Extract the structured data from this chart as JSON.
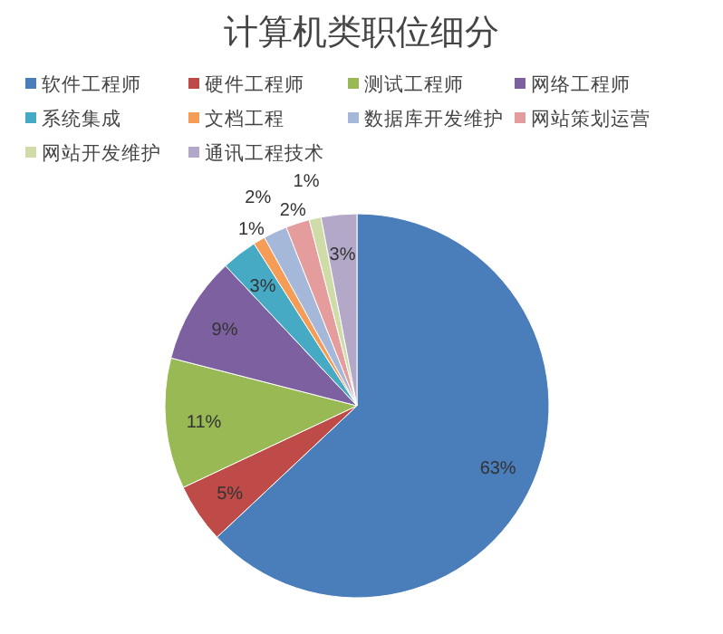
{
  "chart_data": {
    "type": "pie",
    "title": "计算机类职位细分",
    "categories": [
      "软件工程师",
      "硬件工程师",
      "测试工程师",
      "网络工程师",
      "系统集成",
      "文档工程",
      "数据库开发维护",
      "网站策划运营",
      "网站开发维护",
      "通讯工程技术"
    ],
    "values": [
      63,
      5,
      11,
      9,
      3,
      1,
      2,
      2,
      1,
      3
    ],
    "colors": [
      "#4a7ebb",
      "#be4b48",
      "#98b954",
      "#7d60a0",
      "#46aac5",
      "#f59d56",
      "#a5b8d9",
      "#e49c9c",
      "#cfdca8",
      "#b3a8c8"
    ],
    "value_labels": [
      "63%",
      "5%",
      "11%",
      "9%",
      "3%",
      "1%",
      "2%",
      "2%",
      "1%",
      "3%"
    ],
    "legend": "top"
  }
}
